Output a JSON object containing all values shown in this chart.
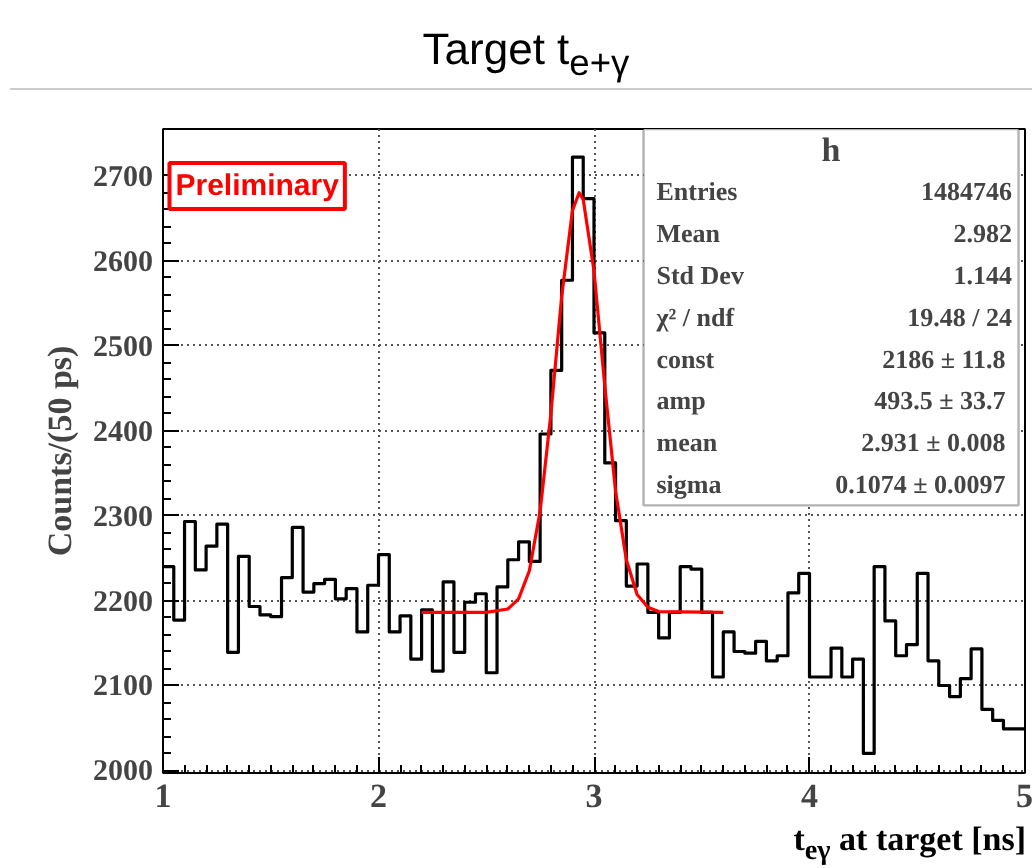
{
  "chart_data": {
    "type": "histogram",
    "title": "Target t$_{e+γ}$",
    "xlabel": "t$_{eγ}$ at target [ns]",
    "ylabel": "Counts/(50 ps)",
    "bins": [
      1.0,
      1.05,
      1.1,
      1.15,
      1.2,
      1.25,
      1.3,
      1.35,
      1.4,
      1.45,
      1.5,
      1.55,
      1.6,
      1.65,
      1.7,
      1.75,
      1.8,
      1.85,
      1.9,
      1.95,
      2.0,
      2.05,
      2.1,
      2.15,
      2.2,
      2.25,
      2.3,
      2.35,
      2.4,
      2.45,
      2.5,
      2.55,
      2.6,
      2.65,
      2.7,
      2.75,
      2.8,
      2.85,
      2.9,
      2.95,
      3.0,
      3.05,
      3.1,
      3.15,
      3.2,
      3.25,
      3.3,
      3.35,
      3.4,
      3.45,
      3.5,
      3.55,
      3.6,
      3.65,
      3.7,
      3.75,
      3.8,
      3.85,
      3.9,
      3.95,
      4.0,
      4.05,
      4.1,
      4.15,
      4.2,
      4.25,
      4.3,
      4.35,
      4.4,
      4.45,
      4.5,
      4.55,
      4.6,
      4.65,
      4.7,
      4.75,
      4.8,
      4.85,
      4.9,
      4.95,
      5.0
    ],
    "series": [
      {
        "color": "#000000",
        "values": [
          2240,
          2177,
          2293,
          2236,
          2264,
          2290,
          2139,
          2252,
          2193,
          2183,
          2181,
          2227,
          2286,
          2210,
          2220,
          2225,
          2202,
          2214,
          2163,
          2218,
          2254,
          2163,
          2182,
          2131,
          2189,
          2117,
          2222,
          2139,
          2198,
          2208,
          2115,
          2216,
          2248,
          2269,
          2246,
          2396,
          2471,
          2577,
          2722,
          2673,
          2515,
          2362,
          2294,
          2217,
          2243,
          2186,
          2156,
          2186,
          2240,
          2237,
          2186,
          2110,
          2163,
          2140,
          2138,
          2152,
          2129,
          2135,
          2209,
          2232,
          2110,
          2110,
          2144,
          2110,
          2131,
          2020,
          2240,
          2176,
          2135,
          2148,
          2232,
          2129,
          2100,
          2087,
          2108,
          2143,
          2072,
          2059,
          2049,
          2049
        ]
      },
      {
        "type": "line",
        "color": "#ff0000",
        "x": [
          2.2,
          2.5,
          2.6,
          2.65,
          2.7,
          2.75,
          2.8,
          2.85,
          2.9,
          2.931,
          2.95,
          3.0,
          3.05,
          3.1,
          3.15,
          3.2,
          3.25,
          3.3,
          3.6
        ],
        "values": [
          2186,
          2186,
          2190,
          2202,
          2235,
          2305,
          2420,
          2558,
          2659,
          2680,
          2672,
          2588,
          2453,
          2329,
          2248,
          2207,
          2192,
          2187,
          2186
        ]
      }
    ],
    "xlim": [
      1,
      5
    ],
    "ylim": [
      1997,
      2755
    ],
    "xticks": [
      1,
      2,
      3,
      4,
      5
    ],
    "yticks": [
      2000,
      2100,
      2200,
      2300,
      2400,
      2500,
      2600,
      2700
    ],
    "grid": true,
    "annotations": [
      "Preliminary",
      "h",
      "Entries",
      "1484746",
      "Mean",
      "2.982",
      "Std Dev",
      "1.144",
      "χ² / ndf",
      "19.48 / 24",
      "const",
      "2186  ± 11.8",
      "amp",
      "493.5  ± 33.7",
      "mean",
      "2.931  ± 0.008",
      "sigma",
      "0.1074  ± 0.0097"
    ]
  }
}
